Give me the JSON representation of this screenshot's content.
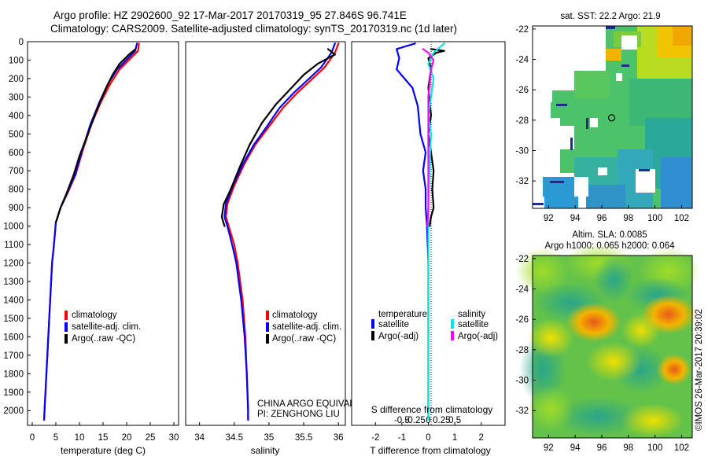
{
  "header": {
    "line1": "Argo profile: HZ 2902600_92 17-Mar-2017 20170319_95 27.846S 96.741E",
    "line2": "Climatology: CARS2009. Satellite-adjusted climatology: synTS_20170319.nc (1d later)"
  },
  "colors": {
    "climatology": "#ff0000",
    "satellite": "#0000ff",
    "argo": "#000000",
    "sal_satellite": "#00e5e5",
    "sal_argo": "#ff00ff"
  },
  "chart_data": [
    {
      "id": "temperature",
      "type": "line",
      "xlabel": "temperature (deg C)",
      "xlim": [
        -1,
        31
      ],
      "xticks": [
        0,
        5,
        10,
        15,
        20,
        25,
        30
      ],
      "ylim": [
        2080,
        0
      ],
      "yticks": [
        0,
        100,
        200,
        300,
        400,
        500,
        600,
        700,
        800,
        900,
        1000,
        1100,
        1200,
        1300,
        1400,
        1500,
        1600,
        1700,
        1800,
        1900,
        2000
      ],
      "legend": [
        "climatology",
        "satellite-adj. clim.",
        "Argo(..raw -QC)"
      ],
      "series": [
        {
          "name": "climatology",
          "color_key": "climatology",
          "points": [
            [
              22.6,
              10
            ],
            [
              22.4,
              50
            ],
            [
              18.5,
              150
            ],
            [
              16.5,
              230
            ],
            [
              14.5,
              330
            ],
            [
              12.5,
              450
            ],
            [
              10.8,
              580
            ],
            [
              9.2,
              720
            ],
            [
              7.5,
              820
            ],
            [
              6.0,
              900
            ],
            [
              5.0,
              980
            ],
            [
              4.6,
              1100
            ],
            [
              4.2,
              1200
            ],
            [
              3.8,
              1400
            ],
            [
              3.4,
              1600
            ],
            [
              3.0,
              1800
            ],
            [
              2.6,
              2000
            ],
            [
              2.5,
              2050
            ]
          ]
        },
        {
          "name": "satellite-adj. clim.",
          "color_key": "satellite",
          "points": [
            [
              22.2,
              10
            ],
            [
              21.8,
              50
            ],
            [
              18.0,
              150
            ],
            [
              16.0,
              230
            ],
            [
              14.2,
              330
            ],
            [
              12.3,
              450
            ],
            [
              10.7,
              580
            ],
            [
              9.1,
              720
            ],
            [
              7.4,
              820
            ],
            [
              6.0,
              900
            ],
            [
              5.0,
              980
            ],
            [
              4.6,
              1100
            ],
            [
              4.2,
              1200
            ],
            [
              3.8,
              1400
            ],
            [
              3.4,
              1600
            ],
            [
              3.0,
              1800
            ],
            [
              2.6,
              2000
            ],
            [
              2.5,
              2050
            ]
          ]
        },
        {
          "name": "Argo(..raw -QC)",
          "color_key": "argo",
          "points": [
            [
              21.9,
              40
            ],
            [
              20.5,
              70
            ],
            [
              18.5,
              120
            ],
            [
              17.0,
              180
            ],
            [
              15.5,
              260
            ],
            [
              13.5,
              380
            ],
            [
              11.8,
              500
            ],
            [
              10.0,
              620
            ],
            [
              8.8,
              720
            ],
            [
              7.3,
              820
            ],
            [
              6.0,
              900
            ],
            [
              5.0,
              980
            ]
          ]
        }
      ]
    },
    {
      "id": "salinity",
      "type": "line",
      "xlabel": "salinity",
      "xlim": [
        33.8,
        36.1
      ],
      "xticks": [
        34,
        34.5,
        35,
        35.5,
        36
      ],
      "xticklabels": [
        "34",
        "34.5",
        "35",
        "35.5",
        "36"
      ],
      "ylim": [
        2080,
        0
      ],
      "legend": [
        "climatology",
        "satellite-adj. clim.",
        "Argo(..raw -QC)"
      ],
      "annotations": [
        "CHINA ARGO EQUIVALENT",
        "PI: ZENGHONG LIU"
      ],
      "series": [
        {
          "name": "climatology",
          "color_key": "climatology",
          "points": [
            [
              36.0,
              10
            ],
            [
              35.95,
              60
            ],
            [
              35.8,
              140
            ],
            [
              35.6,
              210
            ],
            [
              35.4,
              280
            ],
            [
              35.2,
              360
            ],
            [
              35.0,
              460
            ],
            [
              34.8,
              560
            ],
            [
              34.65,
              660
            ],
            [
              34.5,
              780
            ],
            [
              34.4,
              880
            ],
            [
              34.38,
              950
            ],
            [
              34.42,
              1000
            ],
            [
              34.5,
              1100
            ],
            [
              34.55,
              1200
            ],
            [
              34.62,
              1400
            ],
            [
              34.66,
              1600
            ],
            [
              34.68,
              1800
            ],
            [
              34.7,
              2000
            ],
            [
              34.7,
              2050
            ]
          ]
        },
        {
          "name": "satellite-adj. clim.",
          "color_key": "satellite",
          "points": [
            [
              35.95,
              10
            ],
            [
              35.9,
              60
            ],
            [
              35.75,
              140
            ],
            [
              35.55,
              210
            ],
            [
              35.35,
              280
            ],
            [
              35.15,
              360
            ],
            [
              34.97,
              460
            ],
            [
              34.78,
              560
            ],
            [
              34.63,
              660
            ],
            [
              34.48,
              780
            ],
            [
              34.38,
              880
            ],
            [
              34.36,
              950
            ],
            [
              34.4,
              1000
            ],
            [
              34.47,
              1100
            ],
            [
              34.53,
              1200
            ],
            [
              34.6,
              1400
            ],
            [
              34.65,
              1600
            ],
            [
              34.68,
              1800
            ],
            [
              34.7,
              2000
            ],
            [
              34.7,
              2050
            ]
          ]
        },
        {
          "name": "Argo(..raw -QC)",
          "color_key": "argo",
          "points": [
            [
              35.85,
              40
            ],
            [
              35.95,
              70
            ],
            [
              35.7,
              120
            ],
            [
              35.5,
              180
            ],
            [
              35.3,
              260
            ],
            [
              35.1,
              340
            ],
            [
              34.9,
              440
            ],
            [
              34.72,
              560
            ],
            [
              34.58,
              680
            ],
            [
              34.45,
              800
            ],
            [
              34.35,
              880
            ],
            [
              34.32,
              950
            ],
            [
              34.36,
              1000
            ]
          ]
        }
      ]
    },
    {
      "id": "difference",
      "type": "line",
      "xlabel": "T difference from climatology",
      "xlim": [
        -2.9,
        2.9
      ],
      "xticks": [
        -2,
        -1,
        0,
        1,
        2
      ],
      "top_xlabel": "S difference from climatology",
      "top_xticks": [
        -0.5,
        -0.25,
        0,
        0.25,
        0.5
      ],
      "top_xticklabels": [
        "-0.5",
        "-0.25",
        "0",
        "0.25",
        "0.5"
      ],
      "ylim": [
        2080,
        0
      ],
      "legend_temperature_title": "temperature",
      "legend_salinity_title": "salinity",
      "legend_temperature": [
        "satellite",
        "Argo(-adj)"
      ],
      "legend_salinity": [
        "satellite",
        "Argo(-adj)"
      ],
      "series": [
        {
          "name": "T satellite",
          "color_key": "satellite",
          "points": [
            [
              -0.5,
              10
            ],
            [
              -1.2,
              40
            ],
            [
              -1.1,
              90
            ],
            [
              -1.2,
              150
            ],
            [
              -0.9,
              200
            ],
            [
              -0.6,
              250
            ],
            [
              -0.4,
              350
            ],
            [
              -0.3,
              500
            ],
            [
              -0.1,
              600
            ],
            [
              -0.2,
              700
            ],
            [
              -0.1,
              800
            ],
            [
              -0.1,
              900
            ],
            [
              -0.05,
              1000
            ],
            [
              0,
              1200
            ],
            [
              0,
              1500
            ],
            [
              0,
              1800
            ],
            [
              0,
              2050
            ]
          ]
        },
        {
          "name": "T Argo(-adj)",
          "color_key": "argo",
          "points": [
            [
              0.1,
              40
            ],
            [
              0.6,
              50
            ],
            [
              0.3,
              60
            ],
            [
              0.0,
              90
            ],
            [
              0.1,
              150
            ],
            [
              0.0,
              250
            ],
            [
              0.1,
              400
            ],
            [
              0.0,
              500
            ],
            [
              0.1,
              600
            ],
            [
              0.2,
              700
            ],
            [
              0.15,
              800
            ],
            [
              0.2,
              900
            ],
            [
              0.1,
              950
            ],
            [
              0.05,
              1000
            ]
          ]
        },
        {
          "name": "S satellite",
          "color_key": "sal_satellite",
          "points": [
            [
              0.3,
              10
            ],
            [
              0.1,
              60
            ],
            [
              0.0,
              120
            ],
            [
              0.1,
              200
            ],
            [
              0.05,
              300
            ],
            [
              0.0,
              400
            ],
            [
              0.05,
              500
            ],
            [
              0.02,
              700
            ],
            [
              0.0,
              900
            ],
            [
              0.0,
              1200
            ],
            [
              0.0,
              1600
            ],
            [
              0.0,
              2050
            ]
          ]
        },
        {
          "name": "S Argo(-adj)",
          "color_key": "sal_argo",
          "points": [
            [
              -0.1,
              40
            ],
            [
              0.0,
              60
            ],
            [
              0.1,
              100
            ],
            [
              0.05,
              150
            ],
            [
              0.0,
              300
            ],
            [
              0.0,
              600
            ],
            [
              0.0,
              900
            ],
            [
              -0.02,
              1000
            ]
          ]
        }
      ]
    },
    {
      "id": "sst_map",
      "type": "heatmap",
      "title": "sat. SST: 22.2  Argo: 21.9",
      "xticks": [
        92,
        94,
        96,
        98,
        100,
        102
      ],
      "yticks": [
        -22,
        -24,
        -26,
        -28,
        -30,
        -32
      ],
      "xlim": [
        90.8,
        102.8
      ],
      "ylim": [
        -33.8,
        -21.8
      ],
      "marker": [
        96.741,
        -27.846
      ]
    },
    {
      "id": "sla_map",
      "type": "heatmap",
      "title_line1": "Altim. SLA: 0.0085",
      "title_line2": "Argo h1000: 0.065  h2000: 0.064",
      "xticks": [
        92,
        94,
        96,
        98,
        100,
        102
      ],
      "yticks": [
        -22,
        -24,
        -26,
        -28,
        -30,
        -32
      ],
      "xlim": [
        90.8,
        102.8
      ],
      "ylim": [
        -33.8,
        -21.8
      ]
    }
  ],
  "credit": "©IMOS 26-Mar-2017 20:39:02"
}
